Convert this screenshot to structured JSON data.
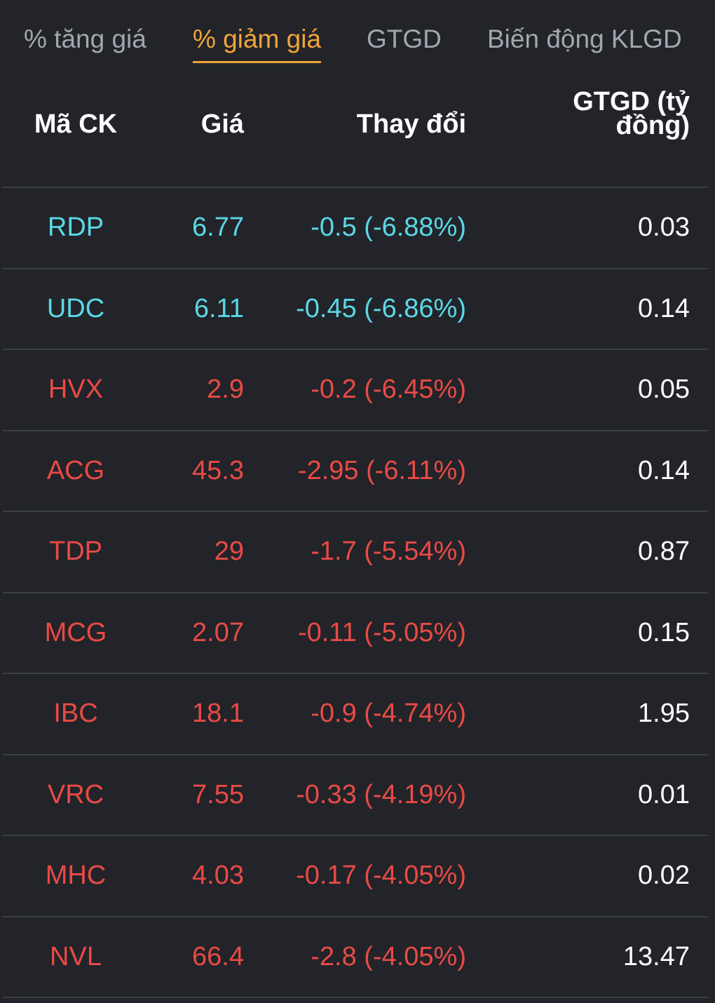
{
  "tabs": [
    {
      "label": "% tăng giá",
      "active": false
    },
    {
      "label": "% giảm giá",
      "active": true
    },
    {
      "label": "GTGD",
      "active": false
    },
    {
      "label": "Biến động KLGD",
      "active": false
    }
  ],
  "table": {
    "headers": {
      "code": "Mã CK",
      "price": "Giá",
      "change": "Thay đổi",
      "value_line1": "GTGD (tỷ",
      "value_line2": "đồng)"
    },
    "rows": [
      {
        "code": "RDP",
        "price": "6.77",
        "change": "-0.5 (-6.88%)",
        "value": "0.03",
        "status": "floor"
      },
      {
        "code": "UDC",
        "price": "6.11",
        "change": "-0.45 (-6.86%)",
        "value": "0.14",
        "status": "floor"
      },
      {
        "code": "HVX",
        "price": "2.9",
        "change": "-0.2 (-6.45%)",
        "value": "0.05",
        "status": "down"
      },
      {
        "code": "ACG",
        "price": "45.3",
        "change": "-2.95 (-6.11%)",
        "value": "0.14",
        "status": "down"
      },
      {
        "code": "TDP",
        "price": "29",
        "change": "-1.7 (-5.54%)",
        "value": "0.87",
        "status": "down"
      },
      {
        "code": "MCG",
        "price": "2.07",
        "change": "-0.11 (-5.05%)",
        "value": "0.15",
        "status": "down"
      },
      {
        "code": "IBC",
        "price": "18.1",
        "change": "-0.9 (-4.74%)",
        "value": "1.95",
        "status": "down"
      },
      {
        "code": "VRC",
        "price": "7.55",
        "change": "-0.33 (-4.19%)",
        "value": "0.01",
        "status": "down"
      },
      {
        "code": "MHC",
        "price": "4.03",
        "change": "-0.17 (-4.05%)",
        "value": "0.02",
        "status": "down"
      },
      {
        "code": "NVL",
        "price": "66.4",
        "change": "-2.8 (-4.05%)",
        "value": "13.47",
        "status": "down"
      }
    ]
  },
  "colors": {
    "background": "#222429",
    "active_tab": "#f2a43a",
    "inactive_tab": "#a3a6ad",
    "floor": "#5ad8e6",
    "down": "#ea4a45",
    "divider": "#3b3e45"
  }
}
